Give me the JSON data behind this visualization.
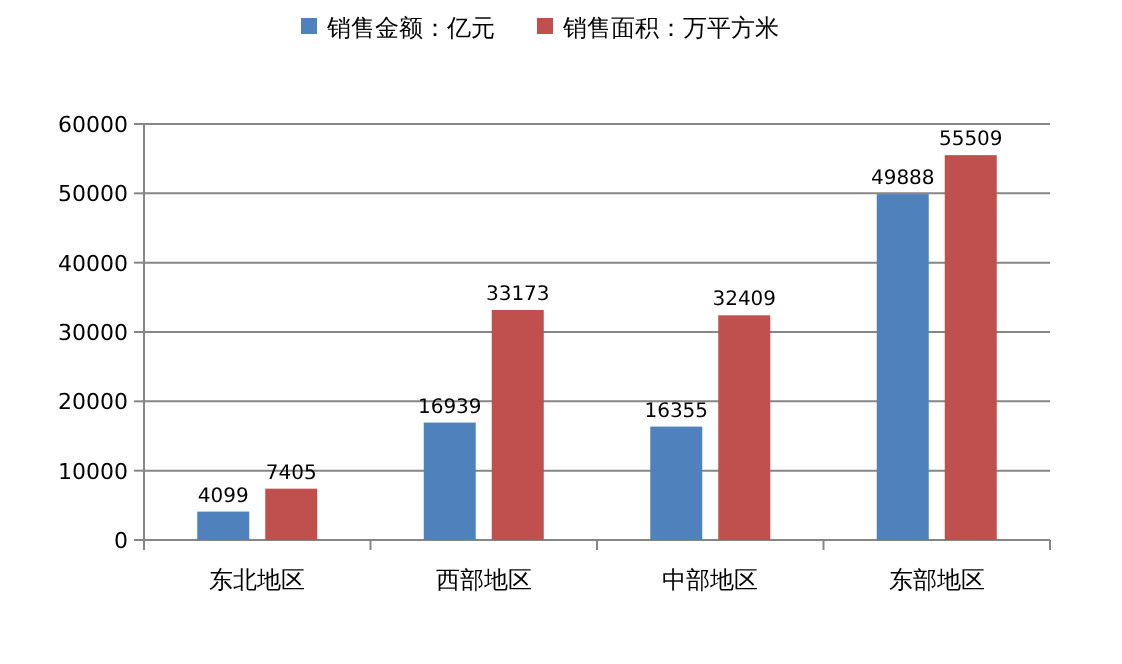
{
  "chart_data": {
    "type": "bar",
    "categories": [
      "东北地区",
      "西部地区",
      "中部地区",
      "东部地区"
    ],
    "series": [
      {
        "name": "销售金额：亿元",
        "color": "#4f81bd",
        "values": [
          4099,
          16939,
          16355,
          49888
        ]
      },
      {
        "name": "销售面积：万平方米",
        "color": "#c0504d",
        "values": [
          7405,
          33173,
          32409,
          55509
        ]
      }
    ],
    "ylim": [
      0,
      60000
    ],
    "yticks": [
      0,
      10000,
      20000,
      30000,
      40000,
      50000,
      60000
    ],
    "grid": "y",
    "legend": "top",
    "data_labels": true
  }
}
